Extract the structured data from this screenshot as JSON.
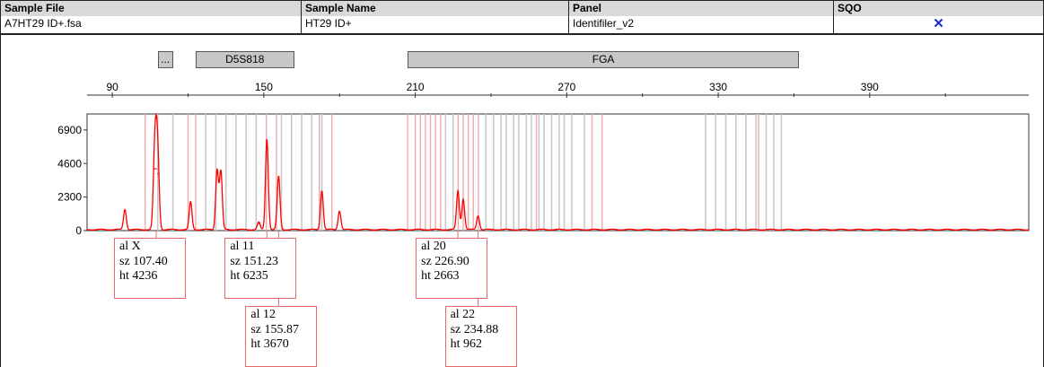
{
  "table": {
    "headers": [
      "Sample File",
      "Sample Name",
      "Panel",
      "SQO"
    ],
    "row": {
      "sample_file": "A7HT29 ID+.fsa",
      "sample_name": "HT29 ID+",
      "panel": "Identifiler_v2",
      "sqo": "✕",
      "sqo_color": "#1a2bd6"
    }
  },
  "markers": [
    {
      "label": "...",
      "start": 108,
      "end": 114
    },
    {
      "label": "D5S818",
      "start": 123,
      "end": 162
    },
    {
      "label": "FGA",
      "start": 207,
      "end": 362
    }
  ],
  "chart_data": {
    "type": "line",
    "x_ticks": [
      90,
      150,
      210,
      270,
      330,
      390
    ],
    "y_ticks": [
      0,
      2300,
      4600,
      6900
    ],
    "xlim": [
      80,
      453
    ],
    "ylim": [
      0,
      8000
    ],
    "trace_color": "#ff0000",
    "bin_lines_gray": [
      108,
      114,
      127,
      131,
      135,
      139,
      143,
      147,
      157,
      161,
      165,
      169,
      173,
      222,
      225,
      238,
      241,
      244,
      246,
      249,
      251,
      254,
      256,
      259,
      261,
      264,
      267,
      269,
      272,
      277,
      325,
      329,
      333,
      337,
      341,
      345,
      349,
      352,
      355
    ],
    "bin_lines_pink": [
      103,
      120,
      123,
      151,
      155,
      172,
      177,
      207,
      210,
      212,
      214,
      216,
      218,
      220,
      227,
      229,
      231,
      233,
      235,
      258,
      280,
      284,
      346
    ],
    "peaks": [
      {
        "x": 95.0,
        "h": 1400
      },
      {
        "x": 106.7,
        "h": 4236
      },
      {
        "x": 107.4,
        "h": 4236
      },
      {
        "x": 108.1,
        "h": 3900
      },
      {
        "x": 121.0,
        "h": 1900
      },
      {
        "x": 131.5,
        "h": 4100
      },
      {
        "x": 133.0,
        "h": 4000
      },
      {
        "x": 148.0,
        "h": 500
      },
      {
        "x": 151.23,
        "h": 6235
      },
      {
        "x": 155.87,
        "h": 3670
      },
      {
        "x": 173.0,
        "h": 2700
      },
      {
        "x": 180.0,
        "h": 1300
      },
      {
        "x": 226.9,
        "h": 2663
      },
      {
        "x": 229.0,
        "h": 2100
      },
      {
        "x": 234.88,
        "h": 962
      }
    ],
    "callouts": [
      {
        "al": "al X",
        "sz": "sz 107.40",
        "ht": "ht 4236",
        "x": 107.4
      },
      {
        "al": "al 11",
        "sz": "sz 151.23",
        "ht": "ht 6235",
        "x": 151.23
      },
      {
        "al": "al 12",
        "sz": "sz 155.87",
        "ht": "ht 3670",
        "x": 155.87
      },
      {
        "al": "al 20",
        "sz": "sz 226.90",
        "ht": "ht 2663",
        "x": 226.9
      },
      {
        "al": "al 22",
        "sz": "sz 234.88",
        "ht": "ht 962",
        "x": 234.88
      }
    ]
  }
}
